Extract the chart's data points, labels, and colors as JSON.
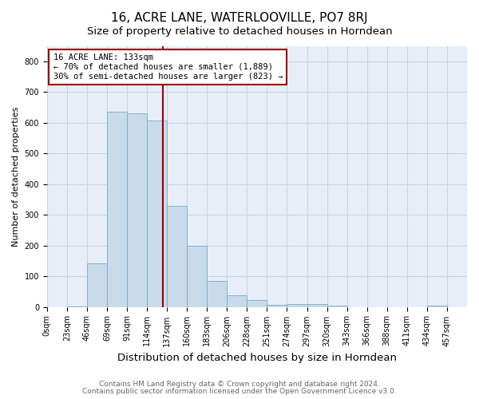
{
  "title": "16, ACRE LANE, WATERLOOVILLE, PO7 8RJ",
  "subtitle": "Size of property relative to detached houses in Horndean",
  "xlabel": "Distribution of detached houses by size in Horndean",
  "ylabel": "Number of detached properties",
  "footnote1": "Contains HM Land Registry data © Crown copyright and database right 2024.",
  "footnote2": "Contains public sector information licensed under the Open Government Licence v3.0.",
  "categories": [
    "0sqm",
    "23sqm",
    "46sqm",
    "69sqm",
    "91sqm",
    "114sqm",
    "137sqm",
    "160sqm",
    "183sqm",
    "206sqm",
    "228sqm",
    "251sqm",
    "274sqm",
    "297sqm",
    "320sqm",
    "343sqm",
    "366sqm",
    "388sqm",
    "411sqm",
    "434sqm",
    "457sqm"
  ],
  "values": [
    0,
    2,
    143,
    635,
    630,
    608,
    330,
    200,
    85,
    37,
    22,
    7,
    10,
    9,
    5,
    0,
    0,
    0,
    0,
    5,
    0
  ],
  "bar_color": "#c9daea",
  "bar_edge_color": "#7aaac8",
  "bar_edge_width": 0.6,
  "grid_color": "#c8d4e4",
  "bg_color": "#e8eef8",
  "annotation_line_color": "#990000",
  "annotation_text_line1": "16 ACRE LANE: 133sqm",
  "annotation_text_line2": "← 70% of detached houses are smaller (1,889)",
  "annotation_text_line3": "30% of semi-detached houses are larger (823) →",
  "annotation_box_color": "white",
  "annotation_box_edge_color": "#990000",
  "ylim": [
    0,
    850
  ],
  "yticks": [
    0,
    100,
    200,
    300,
    400,
    500,
    600,
    700,
    800
  ],
  "title_fontsize": 11,
  "subtitle_fontsize": 9.5,
  "xlabel_fontsize": 9.5,
  "ylabel_fontsize": 8,
  "tick_fontsize": 7,
  "annotation_fontsize": 7.5,
  "footnote_fontsize": 6.5,
  "bin_width": 23
}
